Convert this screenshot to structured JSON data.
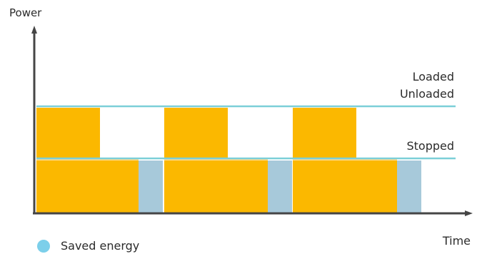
{
  "axes": {
    "y_label": "Power",
    "x_label": "Time"
  },
  "levels": {
    "loaded": "Loaded",
    "unloaded": "Unloaded",
    "stopped": "Stopped"
  },
  "legend": {
    "saved_energy": "Saved energy"
  },
  "colors": {
    "running": "#FBB800",
    "saved_energy": "#A7C9DA",
    "level_line": "#7CCFD8",
    "axis": "#454545",
    "legend_dot": "#7CCFEA"
  }
}
